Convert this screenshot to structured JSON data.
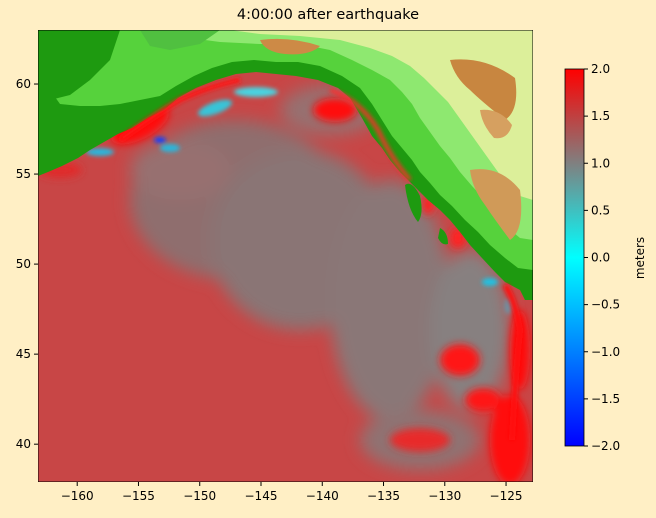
{
  "chart_data": {
    "type": "heatmap",
    "title": "4:00:00 after earthquake",
    "xlabel": "",
    "ylabel": "",
    "xlim": [
      -163.2,
      -122.8
    ],
    "ylim": [
      37.9,
      63.0
    ],
    "x_ticks": [
      -160,
      -155,
      -150,
      -145,
      -140,
      -135,
      -130,
      -125
    ],
    "y_ticks": [
      40,
      45,
      50,
      55,
      60
    ],
    "grid": false,
    "colorbar": {
      "label": "meters",
      "range": [
        -2.0,
        2.0
      ],
      "ticks": [
        -2.0,
        -1.5,
        -1.0,
        -0.5,
        0.0,
        0.5,
        1.0,
        1.5,
        2.0
      ],
      "tick_labels": [
        "−2.0",
        "−1.5",
        "−1.0",
        "−0.5",
        "0.0",
        "0.5",
        "1.0",
        "1.5",
        "2.0"
      ],
      "colors": [
        "#0000ff",
        "#00ffff",
        "#808080",
        "#ff0000"
      ]
    },
    "surface_colors": {
      "ocean_base": "#c84646",
      "land_low": "#1e9a10",
      "land_mid": "#7be45a",
      "land_high": "#cd8a46"
    }
  }
}
